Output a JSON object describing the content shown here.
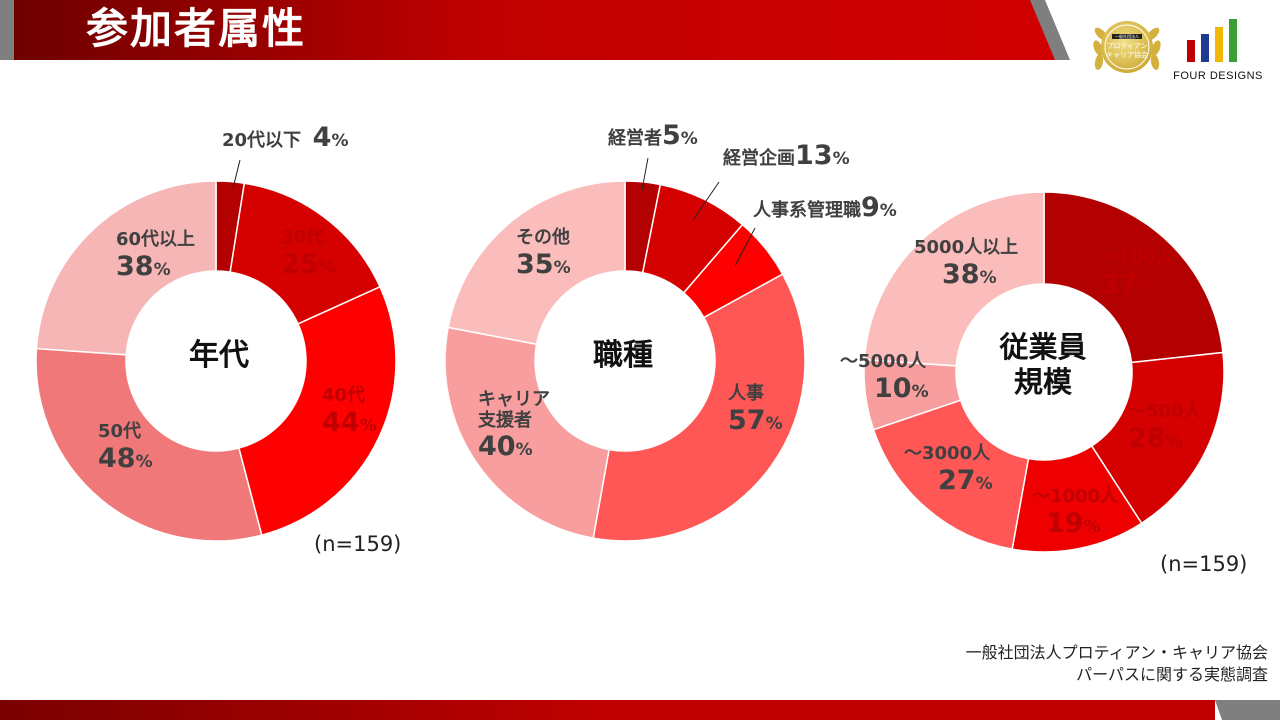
{
  "header": {
    "title": "参加者属性"
  },
  "colors": {
    "brand_red": "#c00000",
    "grey_bar": "#7f7f7f"
  },
  "logos": {
    "seal_text_1": "一般社団法人",
    "seal_text_2": "プロティアン",
    "seal_text_3": "キャリア協会",
    "fd_text": "FOUR DESIGNS"
  },
  "chart_data": [
    {
      "type": "pie",
      "title": "年代",
      "note": "(n=159)",
      "slices": [
        {
          "label": "20代以下",
          "value": 4,
          "pct": "4",
          "color": "#b30000"
        },
        {
          "label": "30代",
          "value": 25,
          "pct": "25",
          "color": "#d50000"
        },
        {
          "label": "40代",
          "value": 44,
          "pct": "44",
          "color": "#ff0000"
        },
        {
          "label": "50代",
          "value": 48,
          "pct": "48",
          "color": "#f07878"
        },
        {
          "label": "60代以上",
          "value": 38,
          "pct": "38",
          "color": "#f6b6b6"
        }
      ]
    },
    {
      "type": "pie",
      "title": "職種",
      "slices": [
        {
          "label": "経営者",
          "value": 5,
          "pct": "5",
          "color": "#b30000"
        },
        {
          "label": "経営企画",
          "value": 13,
          "pct": "13",
          "color": "#d50000"
        },
        {
          "label": "人事系管理職",
          "value": 9,
          "pct": "9",
          "color": "#ff0000"
        },
        {
          "label": "人事",
          "value": 57,
          "pct": "57",
          "color": "#ff5656"
        },
        {
          "label": "キャリア支援者",
          "label_line1": "キャリア",
          "label_line2": "支援者",
          "value": 40,
          "pct": "40",
          "color": "#f89e9e"
        },
        {
          "label": "その他",
          "value": 35,
          "pct": "35",
          "color": "#fbbcbc"
        }
      ]
    },
    {
      "type": "pie",
      "title": "従業員規模",
      "title_line1": "従業員",
      "title_line2": "規模",
      "note": "(n=159)",
      "slices": [
        {
          "label": "～100人",
          "value": 37,
          "pct": "37",
          "color": "#b30000"
        },
        {
          "label": "～500人",
          "value": 28,
          "pct": "28",
          "color": "#d50000"
        },
        {
          "label": "～1000人",
          "value": 19,
          "pct": "19",
          "color": "#ee0000"
        },
        {
          "label": "～3000人",
          "value": 27,
          "pct": "27",
          "color": "#ff5656"
        },
        {
          "label": "～5000人",
          "value": 10,
          "pct": "10",
          "color": "#f89e9e"
        },
        {
          "label": "5000人以上",
          "value": 38,
          "pct": "38",
          "color": "#fbbcbc"
        }
      ]
    }
  ],
  "source": {
    "line1": "一般社団法人プロティアン・キャリア協会",
    "line2": "パーパスに関する実態調査"
  }
}
